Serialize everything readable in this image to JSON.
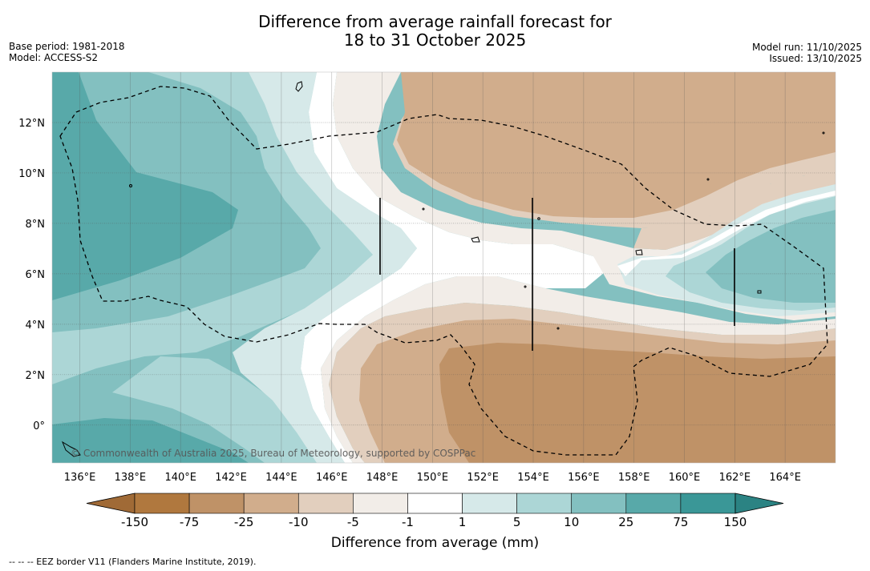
{
  "title": {
    "line1": "Difference from average rainfall forecast for",
    "line2": "18 to 31 October 2025"
  },
  "meta": {
    "base_period": "Base period: 1981-2018",
    "model": "Model: ACCESS-S2",
    "model_run": "Model run: 11/10/2025",
    "issued": "Issued: 13/10/2025"
  },
  "map": {
    "lon_labels": [
      "136°E",
      "138°E",
      "140°E",
      "142°E",
      "144°E",
      "146°E",
      "148°E",
      "150°E",
      "152°E",
      "154°E",
      "156°E",
      "158°E",
      "160°E",
      "162°E",
      "164°E"
    ],
    "lon_values": [
      136,
      138,
      140,
      142,
      144,
      146,
      148,
      150,
      152,
      154,
      156,
      158,
      160,
      162,
      164
    ],
    "lat_labels": [
      "12°N",
      "10°N",
      "8°N",
      "6°N",
      "4°N",
      "2°N",
      "0°"
    ],
    "lat_values": [
      12,
      10,
      8,
      6,
      4,
      2,
      0
    ],
    "lon_range": [
      134.9,
      166
    ],
    "lat_range": [
      -1.5,
      14
    ],
    "copyright": "© Commonwealth of Australia 2025, Bureau of Meteorology, supported by COSPPac",
    "colors": {
      "lt_-150": "#a06a36",
      "-150_-75": "#b0783e",
      "-75_-25": "#bf9267",
      "-25_-10": "#d1ad8c",
      "-10_-5": "#e2cfbe",
      "-5_-1": "#f2ede8",
      "-1_1": "#ffffff",
      "1_5": "#d6e9e9",
      "5_10": "#acd6d6",
      "10_25": "#83c0c0",
      "25_75": "#58a9a9",
      "75_150": "#3a9797",
      "gt_150": "#2b8383"
    }
  },
  "colorbar": {
    "labels": [
      "-150",
      "-75",
      "-25",
      "-10",
      "-5",
      "-1",
      "1",
      "5",
      "10",
      "25",
      "75",
      "150"
    ],
    "colors": [
      "#b0783e",
      "#bf9267",
      "#d1ad8c",
      "#e2cfbe",
      "#f2ede8",
      "#ffffff",
      "#d6e9e9",
      "#acd6d6",
      "#83c0c0",
      "#58a9a9",
      "#3a9797"
    ],
    "low_arrow_color": "#a06a36",
    "high_arrow_color": "#2b8383",
    "title": "Difference from average (mm)"
  },
  "footer": "-- -- -- EEZ border V11 (Flanders Marine Institute, 2019)."
}
